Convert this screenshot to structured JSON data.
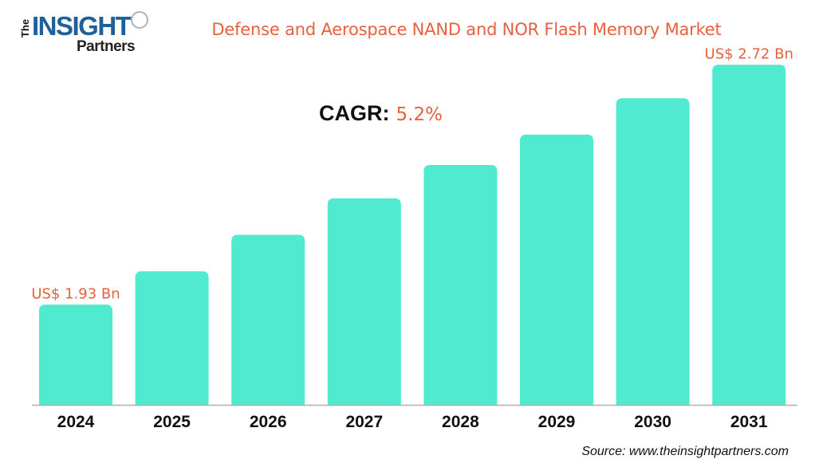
{
  "logo": {
    "text_the": "The",
    "text_insight": "INSIGHT",
    "text_partners": "Partners"
  },
  "title": "Defense and Aerospace NAND and NOR Flash Memory Market",
  "cagr": {
    "label": "CAGR:",
    "value": "5.2%"
  },
  "source": "Source: www.theinsightpartners.com",
  "colors": {
    "bar": "#50ead1",
    "accent": "#e8603c",
    "axis": "#b0b0b0"
  },
  "chart_data": {
    "type": "bar",
    "title": "Defense and Aerospace NAND and NOR Flash Memory Market",
    "categories": [
      "2024",
      "2025",
      "2026",
      "2027",
      "2028",
      "2029",
      "2030",
      "2031"
    ],
    "values": [
      1.93,
      2.04,
      2.16,
      2.28,
      2.39,
      2.49,
      2.61,
      2.72
    ],
    "unit": "US$ Bn",
    "data_labels": {
      "0": "US$ 1.93 Bn",
      "7": "US$ 2.72 Bn"
    },
    "ylim": [
      1.6,
      2.8
    ],
    "grid": false,
    "xlabel": "",
    "ylabel": ""
  }
}
